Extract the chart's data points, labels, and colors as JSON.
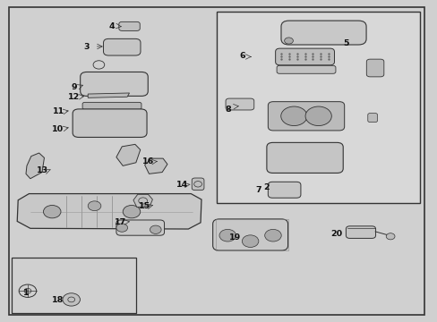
{
  "background_color": "#d0d0d0",
  "line_color": "#333333",
  "label_color": "#111111",
  "fig_width": 4.89,
  "fig_height": 3.6,
  "dpi": 100
}
